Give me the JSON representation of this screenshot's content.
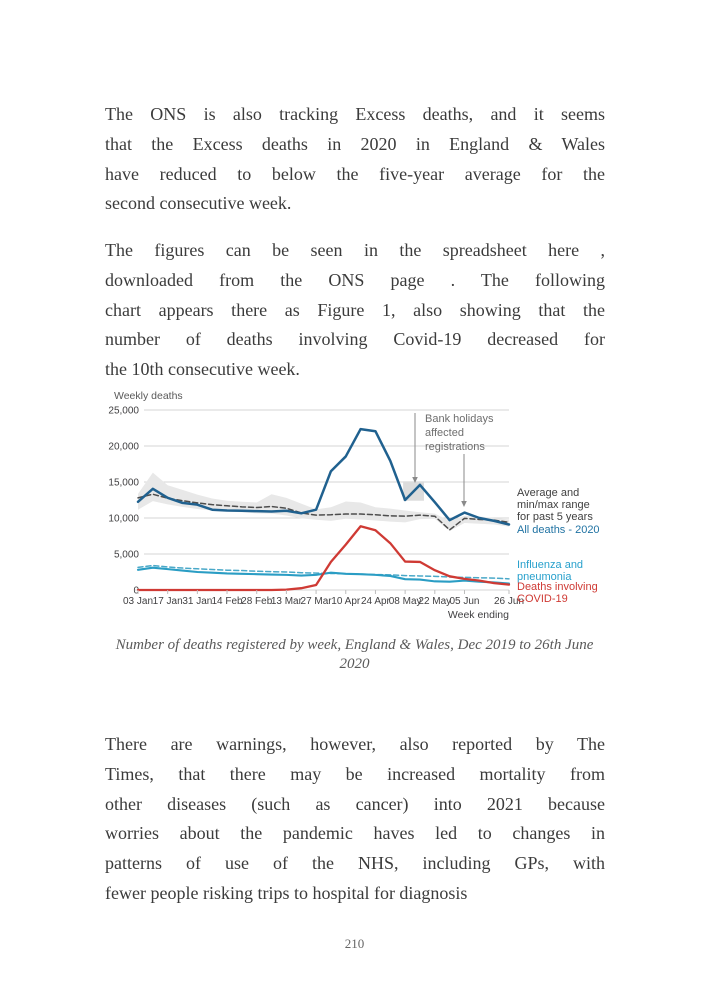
{
  "document": {
    "paragraphs": [
      {
        "lines": [
          "The ONS is also tracking Excess deaths, and it seems",
          "that the Excess deaths in 2020 in England & Wales",
          "have reduced to below the five-year average for the",
          "second consecutive week."
        ]
      },
      {
        "lines": [
          "The figures can be seen in the spreadsheet here ,",
          "downloaded from the ONS page . The following",
          "chart appears there as Figure 1, also showing that the",
          "number of deaths involving Covid-19 decreased for",
          "the 10th consecutive week."
        ]
      },
      {
        "lines": [
          "There are warnings, however, also reported by The",
          "Times, that there may be increased mortality from",
          "other diseases (such as cancer) into 2021 because",
          "worries about the pandemic haves led to changes in",
          "patterns of use of the NHS, including GPs, with",
          "fewer people risking trips to hospital for diagnosis"
        ]
      },
      {
        "lines": []
      }
    ],
    "figure_caption": {
      "line1": "Number of deaths registered by week, England & Wales, Dec 2019 to 26th June",
      "line2": "2020"
    },
    "page_number": "210"
  },
  "chart_data": {
    "type": "line",
    "title": "Weekly deaths",
    "xlabel": "Week ending",
    "ylim": [
      0,
      25000
    ],
    "y_ticks": [
      0,
      5000,
      10000,
      15000,
      20000,
      25000
    ],
    "y_tick_labels": [
      "0",
      "5,000",
      "10,000",
      "15,000",
      "20,000",
      "25,000"
    ],
    "x": [
      "03 Jan",
      "10 Jan",
      "17 Jan",
      "24 Jan",
      "31 Jan",
      "07 Feb",
      "14 Feb",
      "21 Feb",
      "28 Feb",
      "06 Mar",
      "13 Mar",
      "20 Mar",
      "27 Mar",
      "03 Apr",
      "10 Apr",
      "17 Apr",
      "24 Apr",
      "01 May",
      "08 May",
      "15 May",
      "22 May",
      "29 May",
      "05 Jun",
      "12 Jun",
      "19 Jun",
      "26 Jun"
    ],
    "x_tick_indices": [
      0,
      2,
      4,
      6,
      8,
      10,
      12,
      14,
      16,
      18,
      20,
      22,
      25
    ],
    "grid": "horizontal",
    "legend_position": "right",
    "series": [
      {
        "name": "Min/max range for past 5 years",
        "type": "band",
        "color": "#e8e8e8",
        "max": [
          13350,
          16300,
          14550,
          13900,
          13250,
          12700,
          12400,
          12250,
          12150,
          13300,
          12800,
          12000,
          11200,
          11500,
          12300,
          12150,
          11500,
          11300,
          11050,
          10800,
          10600,
          9600,
          10300,
          10200,
          10000,
          9800
        ],
        "min": [
          11150,
          12350,
          11900,
          11550,
          11250,
          11050,
          10900,
          10800,
          10650,
          10600,
          10350,
          9950,
          9750,
          9600,
          9900,
          9800,
          9650,
          9500,
          9400,
          9850,
          9900,
          8200,
          9300,
          9200,
          9100,
          8800
        ]
      },
      {
        "name": "Average for past 5 years",
        "type": "line",
        "style": "dashed",
        "color": "#4d4d4d",
        "width": 1.5,
        "values": [
          12800,
          13300,
          12750,
          12400,
          12100,
          11850,
          11700,
          11550,
          11450,
          11600,
          11350,
          10700,
          10400,
          10450,
          10550,
          10550,
          10450,
          10300,
          10250,
          10400,
          10250,
          8350,
          9950,
          9800,
          9700,
          9400
        ]
      },
      {
        "name": "All deaths - 2020",
        "type": "line",
        "style": "solid",
        "color": "#20618f",
        "width": 2.5,
        "values": [
          12250,
          14050,
          12800,
          12100,
          11850,
          11150,
          11050,
          11000,
          10950,
          10900,
          11000,
          10650,
          11150,
          16500,
          18550,
          22350,
          22050,
          17950,
          12500,
          14600,
          12200,
          9700,
          10750,
          10000,
          9600,
          9100
        ]
      },
      {
        "name": "Influenza and pneumonia - average for past 5 years",
        "type": "line",
        "style": "dashed",
        "color": "#49a8c8",
        "width": 1.5,
        "values": [
          3150,
          3400,
          3200,
          3050,
          2950,
          2850,
          2750,
          2700,
          2600,
          2550,
          2500,
          2400,
          2350,
          2300,
          2250,
          2200,
          2150,
          2100,
          2000,
          1950,
          1900,
          1800,
          1750,
          1700,
          1650,
          1550
        ]
      },
      {
        "name": "Influenza and pneumonia",
        "type": "line",
        "style": "solid",
        "color": "#2a9dc4",
        "width": 2.1,
        "values": [
          2800,
          3100,
          2900,
          2700,
          2500,
          2400,
          2300,
          2250,
          2200,
          2150,
          2100,
          2000,
          2100,
          2400,
          2250,
          2200,
          2100,
          1950,
          1500,
          1450,
          1200,
          1150,
          1300,
          1150,
          1050,
          900
        ]
      },
      {
        "name": "Deaths involving COVID-19",
        "type": "line",
        "style": "solid",
        "color": "#cf3a34",
        "width": 2.3,
        "values": [
          0,
          0,
          0,
          0,
          0,
          0,
          0,
          0,
          0,
          0,
          50,
          250,
          700,
          3900,
          6300,
          8850,
          8300,
          6500,
          3950,
          3900,
          2750,
          1900,
          1550,
          1300,
          950,
          750
        ]
      }
    ],
    "bank_holiday_highlight": {
      "from_week": "08 May",
      "to_week": "15 May",
      "value_bottom": 12400,
      "value_top": 15100,
      "color": "#dcdcdc"
    },
    "annotation": {
      "lines": [
        "Bank holidays",
        "affected",
        "registrations"
      ],
      "color": "#6e6e6e"
    },
    "legend": [
      {
        "lines": [
          "Average and",
          "min/max range",
          "for past 5 years"
        ],
        "color": "#404040"
      },
      {
        "lines": [
          "All deaths - 2020"
        ],
        "color": "#2173a3"
      },
      {
        "lines": [
          "Influenza and",
          "pneumonia"
        ],
        "color": "#27a0cc"
      },
      {
        "lines": [
          "Deaths involving",
          "COVID-19"
        ],
        "color": "#cf3a34"
      }
    ]
  }
}
